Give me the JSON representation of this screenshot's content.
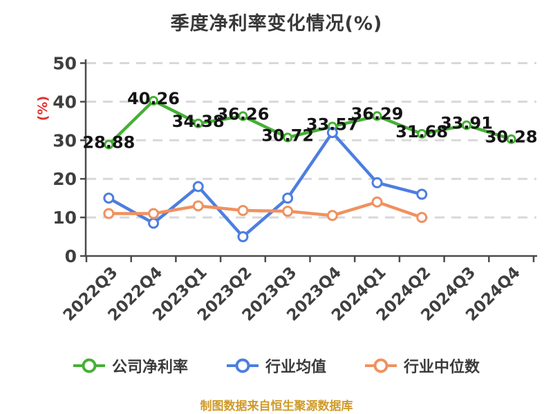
{
  "chart_data": {
    "type": "line",
    "title": "季度净利率变化情况(%)",
    "ylabel": "(%)",
    "categories": [
      "2022Q3",
      "2022Q4",
      "2023Q1",
      "2023Q2",
      "2023Q3",
      "2023Q4",
      "2024Q1",
      "2024Q2",
      "2024Q3",
      "2024Q4"
    ],
    "y_ticks": [
      0,
      10,
      20,
      30,
      40,
      50
    ],
    "ylim": [
      0,
      50
    ],
    "grid": "horizontal-dashed",
    "legend_position": "bottom",
    "series": [
      {
        "key": "company-net-margin",
        "name": "公司净利率",
        "color": "#45b035",
        "values": [
          28.88,
          40.26,
          34.38,
          36.26,
          30.72,
          33.57,
          36.29,
          31.68,
          33.91,
          30.28
        ],
        "labels": [
          "28.88",
          "40.26",
          "34.38",
          "36.26",
          "30.72",
          "33.57",
          "36.29",
          "31.68",
          "33.91",
          "30.28"
        ],
        "show_labels": true
      },
      {
        "key": "industry-mean",
        "name": "行业均值",
        "color": "#4d7ee0",
        "values": [
          15,
          8.5,
          18,
          5,
          15,
          32,
          19,
          16
        ],
        "show_labels": false
      },
      {
        "key": "industry-median",
        "name": "行业中位数",
        "color": "#f0915f",
        "values": [
          11,
          11,
          13,
          11.8,
          11.6,
          10.5,
          14,
          10
        ],
        "show_labels": false
      }
    ]
  },
  "footer": {
    "source_note": "制图数据来自恒生聚源数据库"
  },
  "colors": {
    "background": "#ffffff",
    "title": "#383838",
    "axis": "#4a4a4a",
    "grid": "#d8d8d8",
    "tick_label": "#3f3f3f",
    "data_label": "#141414",
    "ylabel": "#e53333",
    "footer": "#cf9a28",
    "marker_fill": "#ffffff"
  }
}
